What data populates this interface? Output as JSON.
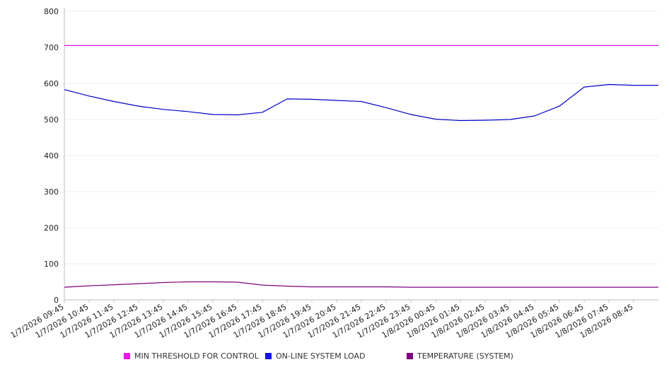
{
  "chart_data": {
    "type": "line",
    "title": "",
    "xlabel": "",
    "ylabel": "",
    "ylim": [
      0,
      800
    ],
    "yticks": [
      0,
      100,
      200,
      300,
      400,
      500,
      600,
      700,
      800
    ],
    "grid": true,
    "legend_position": "bottom",
    "x": [
      "1/7/2026 09:45",
      "1/7/2026 10:45",
      "1/7/2026 11:45",
      "1/7/2026 12:45",
      "1/7/2026 13:45",
      "1/7/2026 14:45",
      "1/7/2026 15:45",
      "1/7/2026 16:45",
      "1/7/2026 17:45",
      "1/7/2026 18:45",
      "1/7/2026 19:45",
      "1/7/2026 20:45",
      "1/7/2026 21:45",
      "1/7/2026 22:45",
      "1/7/2026 23:45",
      "1/8/2026 00:45",
      "1/8/2026 01:45",
      "1/8/2026 02:45",
      "1/8/2026 03:45",
      "1/8/2026 04:45",
      "1/8/2026 05:45",
      "1/8/2026 06:45",
      "1/8/2026 07:45",
      "1/8/2026 08:45"
    ],
    "series": [
      {
        "name": "MIN THRESHOLD FOR CONTROL",
        "color": "#d016d0",
        "values": [
          705,
          705,
          705,
          705,
          705,
          705,
          705,
          705,
          705,
          705,
          705,
          705,
          705,
          705,
          705,
          705,
          705,
          705,
          705,
          705,
          705,
          705,
          705,
          705
        ]
      },
      {
        "name": "ON-LINE SYSTEM LOAD",
        "color": "#0000c8",
        "values": [
          583,
          565,
          550,
          537,
          528,
          522,
          514,
          513,
          520,
          557,
          556,
          553,
          550,
          533,
          514,
          501,
          497,
          498,
          500,
          510,
          537,
          590,
          597,
          595
        ]
      },
      {
        "name": "TEMPERATURE (SYSTEM)",
        "color": "#800080",
        "values": [
          35,
          39,
          42,
          45,
          48,
          50,
          50,
          49,
          41,
          38,
          36,
          36,
          36,
          36,
          35,
          35,
          35,
          35,
          35,
          35,
          35,
          35,
          35,
          35
        ]
      }
    ]
  }
}
